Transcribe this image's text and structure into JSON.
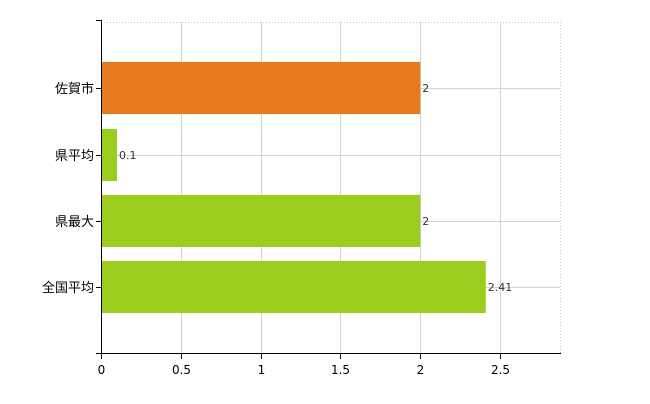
{
  "chart_data": {
    "type": "bar",
    "orientation": "horizontal",
    "categories": [
      "佐賀市",
      "県平均",
      "県最大",
      "全国平均"
    ],
    "values": [
      2,
      0.1,
      2,
      2.41
    ],
    "value_labels": [
      "2",
      "0.1",
      "2",
      "2.41"
    ],
    "colors": [
      "#E87A1E",
      "#9ACD1E",
      "#9ACD1E",
      "#9ACD1E"
    ],
    "xlim": [
      0,
      2.875
    ],
    "xticks": [
      0,
      0.5,
      1,
      1.5,
      2,
      2.5
    ],
    "xtick_labels": [
      "0",
      "0.5",
      "1",
      "1.5",
      "2",
      "2.5"
    ],
    "grid": true,
    "legend": "none",
    "title": "",
    "xlabel": "",
    "ylabel": ""
  }
}
